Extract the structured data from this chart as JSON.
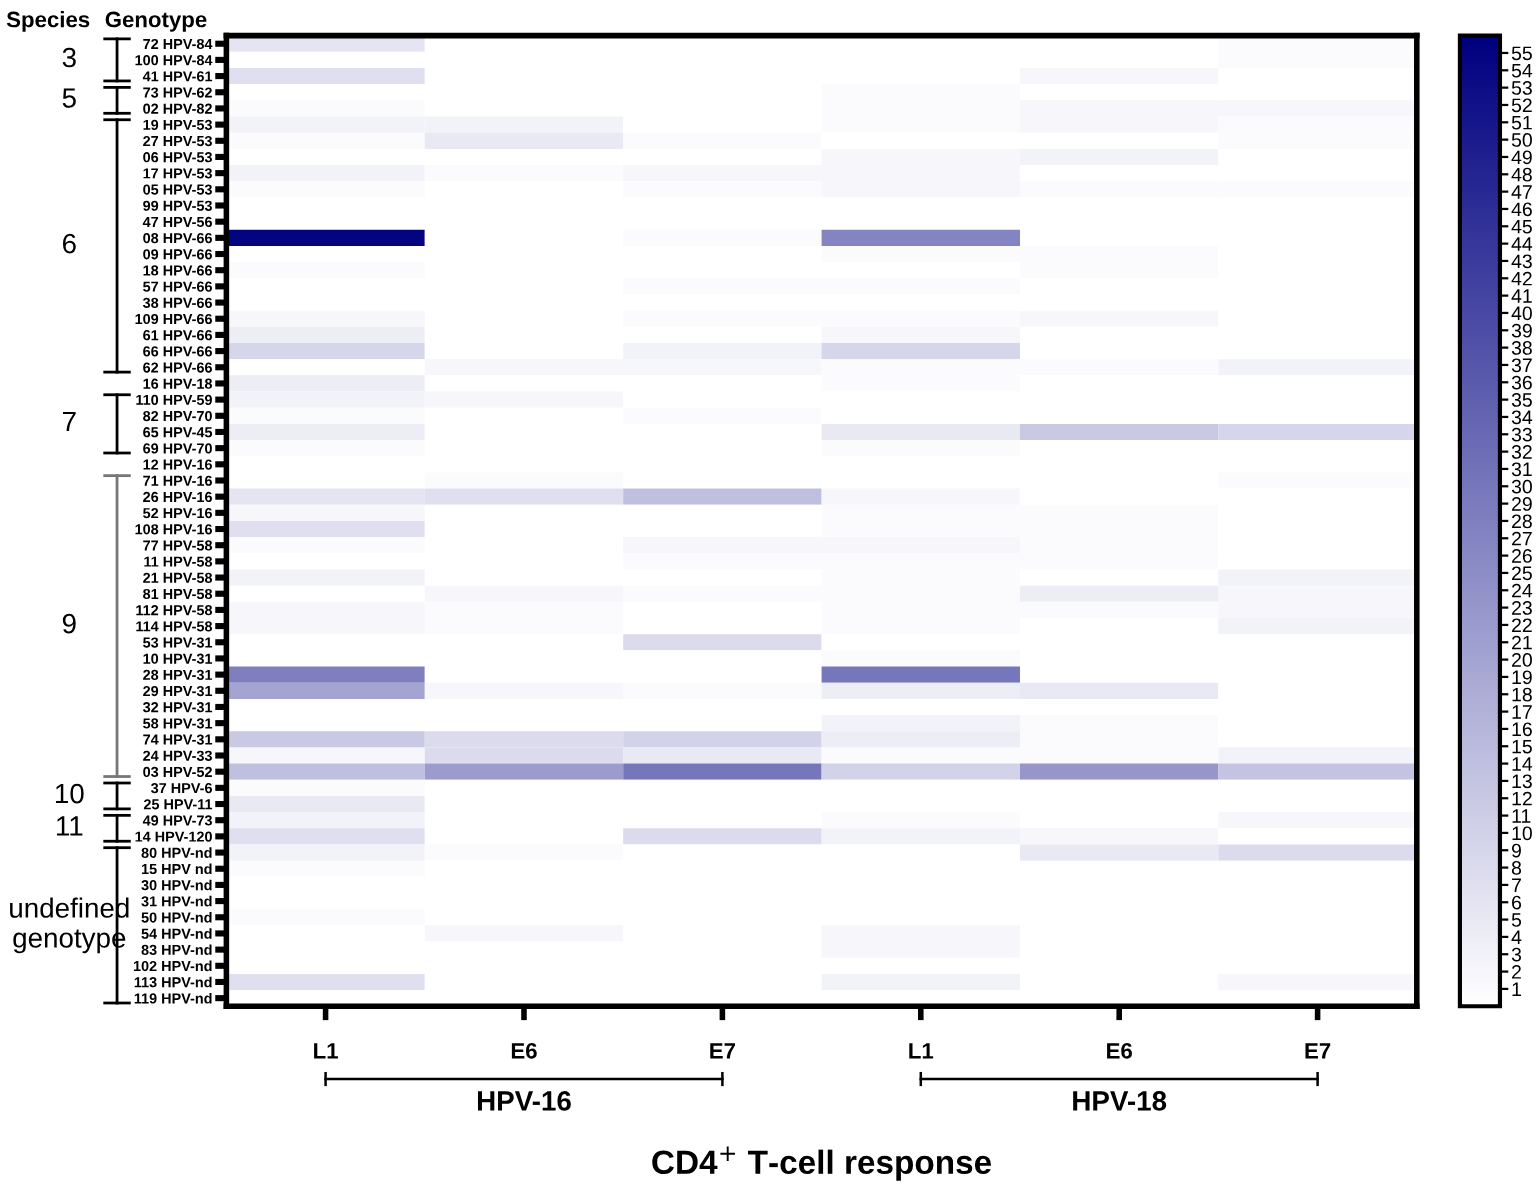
{
  "chart_data": {
    "type": "heatmap",
    "xlabel": "CD4$^{+}$ T-cell response",
    "categories": [
      "L1",
      "E6",
      "E7",
      "L1",
      "E6",
      "E7"
    ],
    "y_categories": [
      "72 HPV-84",
      "100 HPV-84",
      "41 HPV-61",
      "73 HPV-62",
      "02 HPV-82",
      "19 HPV-53",
      "27 HPV-53",
      "06 HPV-53",
      "17 HPV-53",
      "05 HPV-53",
      "99 HPV-53",
      "47 HPV-56",
      "08 HPV-66",
      "09 HPV-66",
      "18 HPV-66",
      "57 HPV-66",
      "38 HPV-66",
      "109 HPV-66",
      "61 HPV-66",
      "66 HPV-66",
      "62 HPV-66",
      "16 HPV-18",
      "110 HPV-59",
      "82 HPV-70",
      "65 HPV-45",
      "69 HPV-70",
      "12 HPV-16",
      "71 HPV-16",
      "26 HPV-16",
      "52 HPV-16",
      "108 HPV-16",
      "77 HPV-58",
      "11 HPV-58",
      "21 HPV-58",
      "81 HPV-58",
      "112 HPV-58",
      "114 HPV-58",
      "53 HPV-31",
      "10 HPV-31",
      "28 HPV-31",
      "29 HPV-31",
      "32 HPV-31",
      "58 HPV-31",
      "74 HPV-31",
      "24 HPV-33",
      "03 HPV-52",
      "37 HPV-6",
      "25 HPV-11",
      "49 HPV-73",
      "14 HPV-120",
      "80 HPV-nd",
      "15 HPV nd",
      "30 HPV-nd",
      "31 HPV-nd",
      "50 HPV-nd",
      "54 HPV-nd",
      "83 HPV-nd",
      "102 HPV-nd",
      "113 HPV-nd",
      "119 HPV-nd"
    ],
    "cells": [
      [
        6,
        0,
        0,
        0,
        0,
        1
      ],
      [
        0,
        0,
        0,
        0,
        0,
        1
      ],
      [
        7,
        0,
        0,
        0,
        2,
        0
      ],
      [
        0,
        0,
        0,
        1,
        0,
        0
      ],
      [
        1,
        0,
        0,
        1,
        2,
        2
      ],
      [
        3,
        3,
        0,
        1,
        2,
        1
      ],
      [
        1,
        5,
        1,
        0,
        0,
        1
      ],
      [
        0,
        0,
        0,
        2,
        3,
        0
      ],
      [
        3,
        1,
        2,
        2,
        0,
        0
      ],
      [
        1,
        0,
        1,
        2,
        1,
        1
      ],
      [
        0,
        0,
        0,
        0,
        0,
        0
      ],
      [
        0,
        0,
        0,
        0,
        0,
        0
      ],
      [
        55,
        0,
        1,
        27,
        0,
        0
      ],
      [
        0,
        0,
        0,
        1,
        1,
        0
      ],
      [
        1,
        0,
        0,
        0,
        1,
        0
      ],
      [
        0,
        0,
        1,
        1,
        0,
        0
      ],
      [
        0,
        0,
        0,
        0,
        0,
        0
      ],
      [
        2,
        0,
        1,
        1,
        2,
        0
      ],
      [
        4,
        0,
        0,
        2,
        0,
        0
      ],
      [
        9,
        0,
        3,
        9,
        0,
        0
      ],
      [
        0,
        2,
        2,
        1,
        1,
        3
      ],
      [
        4,
        0,
        0,
        1,
        0,
        0
      ],
      [
        3,
        2,
        0,
        0,
        0,
        0
      ],
      [
        1,
        0,
        1,
        0,
        0,
        0
      ],
      [
        4,
        0,
        0,
        5,
        12,
        9
      ],
      [
        1,
        0,
        0,
        1,
        0,
        0
      ],
      [
        0,
        0,
        0,
        0,
        0,
        0
      ],
      [
        0,
        1,
        0,
        0,
        0,
        1
      ],
      [
        6,
        7,
        14,
        2,
        0,
        0
      ],
      [
        2,
        0,
        0,
        1,
        1,
        0
      ],
      [
        7,
        0,
        0,
        1,
        1,
        0
      ],
      [
        1,
        0,
        2,
        2,
        1,
        0
      ],
      [
        0,
        0,
        1,
        1,
        1,
        0
      ],
      [
        3,
        0,
        0,
        1,
        0,
        3
      ],
      [
        0,
        2,
        1,
        1,
        4,
        2
      ],
      [
        2,
        1,
        0,
        1,
        1,
        2
      ],
      [
        2,
        1,
        0,
        1,
        0,
        3
      ],
      [
        0,
        0,
        8,
        0,
        0,
        0
      ],
      [
        0,
        0,
        0,
        1,
        0,
        0
      ],
      [
        28,
        0,
        0,
        30,
        0,
        0
      ],
      [
        20,
        2,
        1,
        4,
        5,
        0
      ],
      [
        0,
        0,
        0,
        0,
        0,
        0
      ],
      [
        0,
        0,
        0,
        3,
        1,
        0
      ],
      [
        12,
        8,
        10,
        4,
        1,
        0
      ],
      [
        2,
        8,
        5,
        1,
        1,
        3
      ],
      [
        14,
        22,
        30,
        10,
        23,
        13
      ],
      [
        1,
        0,
        0,
        0,
        0,
        0
      ],
      [
        5,
        0,
        0,
        0,
        0,
        0
      ],
      [
        3,
        0,
        0,
        1,
        0,
        2
      ],
      [
        7,
        0,
        8,
        3,
        2,
        0
      ],
      [
        3,
        1,
        0,
        0,
        5,
        8
      ],
      [
        1,
        0,
        0,
        0,
        0,
        0
      ],
      [
        0,
        0,
        0,
        0,
        0,
        0
      ],
      [
        0,
        0,
        0,
        0,
        0,
        0
      ],
      [
        1,
        0,
        0,
        0,
        0,
        0
      ],
      [
        0,
        2,
        0,
        2,
        0,
        0
      ],
      [
        0,
        0,
        0,
        2,
        0,
        0
      ],
      [
        0,
        0,
        0,
        0,
        0,
        0
      ],
      [
        7,
        0,
        0,
        3,
        0,
        2
      ],
      [
        0,
        0,
        0,
        0,
        0,
        0
      ]
    ],
    "clim": [
      0,
      56
    ],
    "cticks": [
      1,
      2,
      3,
      4,
      5,
      6,
      7,
      8,
      9,
      10,
      11,
      12,
      13,
      14,
      15,
      16,
      17,
      18,
      19,
      20,
      21,
      22,
      23,
      24,
      25,
      26,
      27,
      28,
      29,
      30,
      31,
      32,
      33,
      34,
      35,
      36,
      37,
      38,
      39,
      40,
      41,
      42,
      43,
      44,
      45,
      46,
      47,
      48,
      49,
      50,
      51,
      52,
      53,
      54,
      55
    ],
    "annotations": [
      "Species",
      "Genotype",
      "3",
      "5",
      "6",
      "7",
      "9",
      "10",
      "11",
      "undefined\ngenotype",
      "HPV-16",
      "HPV-18"
    ],
    "grid": false
  }
}
